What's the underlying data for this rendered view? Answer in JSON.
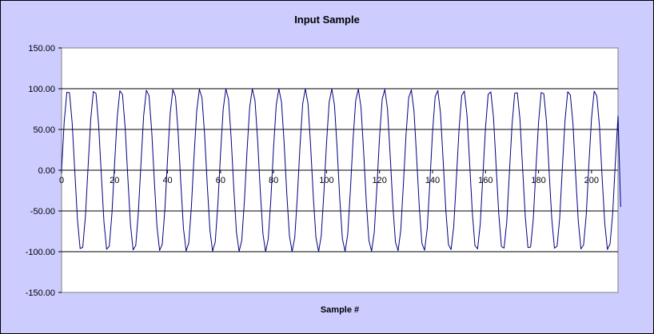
{
  "chart_data": {
    "type": "line",
    "title": "Input Sample",
    "xlabel": "Sample #",
    "ylabel": "",
    "xlim": [
      0,
      210
    ],
    "ylim": [
      -150,
      150
    ],
    "x_ticks": [
      "0",
      "20",
      "40",
      "60",
      "80",
      "100",
      "120",
      "140",
      "160",
      "180",
      "200"
    ],
    "x_tick_values": [
      0,
      20,
      40,
      60,
      80,
      100,
      120,
      140,
      160,
      180,
      200
    ],
    "y_ticks": [
      "150.00",
      "100.00",
      "50.00",
      "0.00",
      "-50.00",
      "-100.00",
      "-150.00"
    ],
    "y_tick_values": [
      150,
      100,
      50,
      0,
      -50,
      -100,
      -150
    ],
    "grid": "horizontal",
    "legend": "none",
    "series": [
      {
        "values": [
          0,
          59.5,
          95.6,
          95.1,
          58.1,
          -1.7,
          -60.9,
          -96.1,
          -94.6,
          -56.6,
          3.4,
          62.3,
          96.6,
          94.0,
          55.1,
          -5.2,
          -63.6,
          -97.0,
          -93.5,
          -53.7,
          6.9,
          65.0,
          97.4,
          92.9,
          52.2,
          -8.6,
          -66.3,
          -97.8,
          -92.3,
          -50.7,
          10.3,
          67.6,
          98.1,
          91.6,
          49.1,
          -12.1,
          -68.9,
          -98.5,
          -90.9,
          -47.6,
          13.8,
          70.1,
          98.8,
          90.2,
          46.0,
          -15.5,
          -71.4,
          -99.0,
          -89.5,
          -44.4,
          17.2,
          72.6,
          99.3,
          88.7,
          42.8,
          -18.9,
          -73.8,
          -99.5,
          -87.9,
          -41.2,
          20.6,
          75.0,
          99.7,
          87.1,
          39.6,
          -22.3,
          -76.2,
          -99.8,
          -86.2,
          -38.0,
          24.0,
          77.3,
          99.9,
          85.4,
          36.3,
          -25.6,
          -78.4,
          -100.0,
          -84.5,
          -34.6,
          27.3,
          79.5,
          100.0,
          83.5,
          33.0,
          -29.0,
          -80.6,
          -100.0,
          -82.6,
          -31.3,
          30.6,
          81.6,
          100.0,
          81.6,
          29.5,
          -32.3,
          -82.6,
          -99.9,
          -80.6,
          -27.8,
          33.9,
          83.6,
          99.8,
          79.6,
          26.1,
          -35.5,
          -84.6,
          -99.7,
          -78.5,
          -24.4,
          37.1,
          85.5,
          99.5,
          77.4,
          22.7,
          -38.7,
          -86.4,
          -99.3,
          -76.3,
          -20.9,
          40.3,
          87.2,
          99.1,
          75.2,
          19.2,
          -41.9,
          -88.1,
          -98.8,
          -74.0,
          -17.5,
          43.5,
          88.9,
          98.5,
          72.8,
          15.7,
          -45.0,
          -89.7,
          -98.2,
          -71.6,
          -14.0,
          46.5,
          90.4,
          97.8,
          70.4,
          12.2,
          -48.1,
          -91.1,
          -97.4,
          -69.1,
          -10.5,
          49.6,
          91.8,
          97.0,
          67.8,
          8.7,
          -51.1,
          -92.5,
          -96.5,
          -66.5,
          -7.0,
          52.5,
          93.1,
          96.1,
          65.2,
          5.2,
          -54.0,
          -93.7,
          -95.5,
          -63.8,
          -3.5,
          55.4,
          94.2,
          95.0,
          62.4,
          1.7,
          -56.8,
          -94.8,
          -94.4,
          -61.0,
          0.0,
          58.2,
          95.3,
          93.8,
          59.6,
          -1.7,
          -59.6,
          -95.7,
          -93.2,
          -58.2,
          3.5,
          61.0,
          96.2,
          92.5,
          56.8,
          -5.2,
          -62.4,
          -96.6,
          -91.8,
          -55.4,
          7.0,
          63.8,
          96.9,
          91.1,
          53.9,
          -8.7,
          -65.2,
          -97.2,
          -90.3,
          -52.5,
          10.5,
          66.5,
          -45.0
        ]
      }
    ]
  },
  "colors": {
    "background": "#ccccff",
    "plot_area": "#ffffff",
    "gridline": "#000000",
    "series_line": "#000080"
  }
}
